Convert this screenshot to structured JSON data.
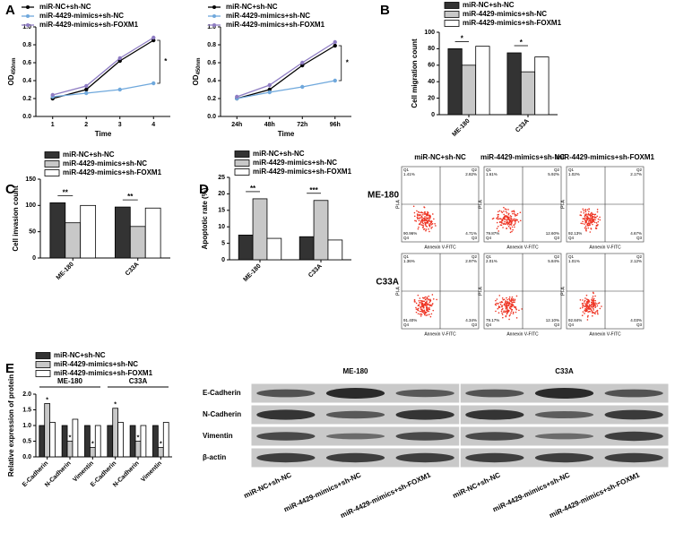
{
  "panel_labels": [
    "A",
    "B",
    "C",
    "D",
    "E"
  ],
  "chart_data": [
    {
      "type": "line",
      "ylabel": "OD",
      "ylabel_sub": "450nm",
      "xlabel": "Time",
      "categories": [
        "1",
        "2",
        "3",
        "4"
      ],
      "series": [
        {
          "name": "miR-NC+sh-NC",
          "color": "#000000",
          "values": [
            0.2,
            0.3,
            0.62,
            0.85
          ]
        },
        {
          "name": "miR-4429-mimics+sh-NC",
          "color": "#6fa8dc",
          "values": [
            0.22,
            0.26,
            0.3,
            0.37
          ]
        },
        {
          "name": "miR-4429-mimics+sh-FOXM1",
          "color": "#8e7cc3",
          "values": [
            0.24,
            0.34,
            0.65,
            0.88
          ]
        }
      ],
      "ylim": [
        0,
        1
      ],
      "yticks": [
        {
          "value": 0,
          "label": "0.0"
        },
        0.2,
        0.4,
        0.6,
        0.8,
        {
          "value": 1,
          "label": "1.0"
        }
      ],
      "annotations": [
        "*"
      ]
    },
    {
      "type": "line",
      "ylabel": "OD",
      "ylabel_sub": "450nm",
      "xlabel": "Time",
      "categories": [
        "24h",
        "48h",
        "72h",
        "96h"
      ],
      "series": [
        {
          "name": "miR-NC+sh-NC",
          "color": "#000000",
          "values": [
            0.2,
            0.3,
            0.57,
            0.79
          ]
        },
        {
          "name": "miR-4429-mimics+sh-NC",
          "color": "#6fa8dc",
          "values": [
            0.2,
            0.27,
            0.33,
            0.4
          ]
        },
        {
          "name": "miR-4429-mimics+sh-FOXM1",
          "color": "#8e7cc3",
          "values": [
            0.22,
            0.35,
            0.6,
            0.83
          ]
        }
      ],
      "ylim": [
        0,
        1
      ],
      "yticks": [
        {
          "value": 0,
          "label": "0.0"
        },
        0.2,
        0.4,
        0.6,
        0.8,
        {
          "value": 1,
          "label": "1.0"
        }
      ],
      "annotations": [
        "*"
      ]
    },
    {
      "type": "bar",
      "ylabel": "Cell migration count",
      "categories": [
        "ME-180",
        "C33A"
      ],
      "series": [
        {
          "name": "miR-NC+sh-NC",
          "color": "#333333",
          "values": [
            80,
            75
          ]
        },
        {
          "name": "miR-4429-mimics+sh-NC",
          "color": "#c8c8c8",
          "values": [
            60,
            52
          ]
        },
        {
          "name": "miR-4429-mimics+sh-FOXM1",
          "color": "#ffffff",
          "values": [
            83,
            70
          ]
        }
      ],
      "ylim": [
        0,
        100
      ],
      "yticks": [
        0,
        20,
        40,
        60,
        80,
        100
      ],
      "annotations": [
        "*",
        "*"
      ]
    },
    {
      "type": "bar",
      "ylabel": "Cell invasion count",
      "categories": [
        "ME-180",
        "C33A"
      ],
      "series": [
        {
          "name": "miR-NC+sh-NC",
          "color": "#333333",
          "values": [
            105,
            97
          ]
        },
        {
          "name": "miR-4429-mimics+sh-NC",
          "color": "#c8c8c8",
          "values": [
            67,
            60
          ]
        },
        {
          "name": "miR-4429-mimics+sh-FOXM1",
          "color": "#ffffff",
          "values": [
            100,
            95
          ]
        }
      ],
      "ylim": [
        0,
        150
      ],
      "yticks": [
        0,
        50,
        100,
        150
      ],
      "annotations": [
        "**",
        "**"
      ]
    },
    {
      "type": "bar",
      "ylabel": "Apoptotic rate (%)",
      "categories": [
        "ME-180",
        "C33A"
      ],
      "series": [
        {
          "name": "miR-NC+sh-NC",
          "color": "#333333",
          "values": [
            7.5,
            7
          ]
        },
        {
          "name": "miR-4429-mimics+sh-NC",
          "color": "#c8c8c8",
          "values": [
            18.5,
            18
          ]
        },
        {
          "name": "miR-4429-mimics+sh-FOXM1",
          "color": "#ffffff",
          "values": [
            6.5,
            6
          ]
        }
      ],
      "ylim": [
        0,
        25
      ],
      "yticks": [
        0,
        5,
        10,
        15,
        20,
        25
      ],
      "annotations": [
        "**",
        "***"
      ]
    },
    {
      "type": "bar",
      "ylabel": "Relative expression of protein",
      "groups": [
        "ME-180",
        "C33A"
      ],
      "categories": [
        "E-Cadherin",
        "N-Cadherin",
        "Vimentin",
        "E-Cadherin",
        "N-Cadherin",
        "Vimentin"
      ],
      "series": [
        {
          "name": "miR-NC+sh-NC",
          "color": "#333333",
          "values": [
            1,
            1,
            1,
            1,
            1,
            1
          ]
        },
        {
          "name": "miR-4429-mimics+sh-NC",
          "color": "#c8c8c8",
          "values": [
            1.7,
            0.5,
            0.3,
            1.55,
            0.5,
            0.3
          ]
        },
        {
          "name": "miR-4429-mimics+sh-FOXM1",
          "color": "#ffffff",
          "values": [
            1.1,
            1.2,
            1,
            1.1,
            1,
            1.1
          ]
        }
      ],
      "ylim": [
        0,
        2
      ],
      "yticks": [
        {
          "value": 0,
          "label": "0.0"
        },
        0.5,
        {
          "value": 1,
          "label": "1.0"
        },
        1.5,
        {
          "value": 2,
          "label": "2.0"
        }
      ],
      "annotations": [
        "*",
        "*",
        "*",
        "*",
        "*",
        "*"
      ]
    }
  ],
  "flow_cytometry": {
    "columns": [
      "miR-NC+sh-NC",
      "miR-4429-mimics+sh-NC",
      "miR-4429-mimics+sh-FOXM1"
    ],
    "rows": [
      "ME-180",
      "C33A"
    ],
    "x_label": "Annexin V-FITC",
    "y_label": "PI-A",
    "quadrant_names": [
      "Q1",
      "Q2",
      "Q4",
      "Q3"
    ],
    "quadrants": [
      [
        [
          "1.41%",
          "2.82%",
          "90.96%",
          "4.71%"
        ],
        [
          "1.61%",
          "5.92%",
          "79.87%",
          "12.60%"
        ],
        [
          "1.02%",
          "2.17%",
          "92.13%",
          "4.67%"
        ]
      ],
      [
        [
          "1.36%",
          "2.97%",
          "91.40%",
          "4.34%"
        ],
        [
          "2.01%",
          "5.84%",
          "79.17%",
          "12.10%"
        ],
        [
          "1.01%",
          "2.12%",
          "92.84%",
          "4.03%"
        ]
      ]
    ]
  },
  "western_blot": {
    "groups": [
      "ME-180",
      "C33A"
    ],
    "proteins": [
      "E-Cadherin",
      "N-Cadherin",
      "Vimentin",
      "β-actin"
    ],
    "lanes": [
      "miR-NC+sh-NC",
      "miR-4429-mimics+sh-NC",
      "miR-4429-mimics+sh-FOXM1",
      "miR-NC+sh-NC",
      "miR-4429-mimics+sh-NC",
      "miR-4429-mimics+sh-FOXM1"
    ]
  }
}
